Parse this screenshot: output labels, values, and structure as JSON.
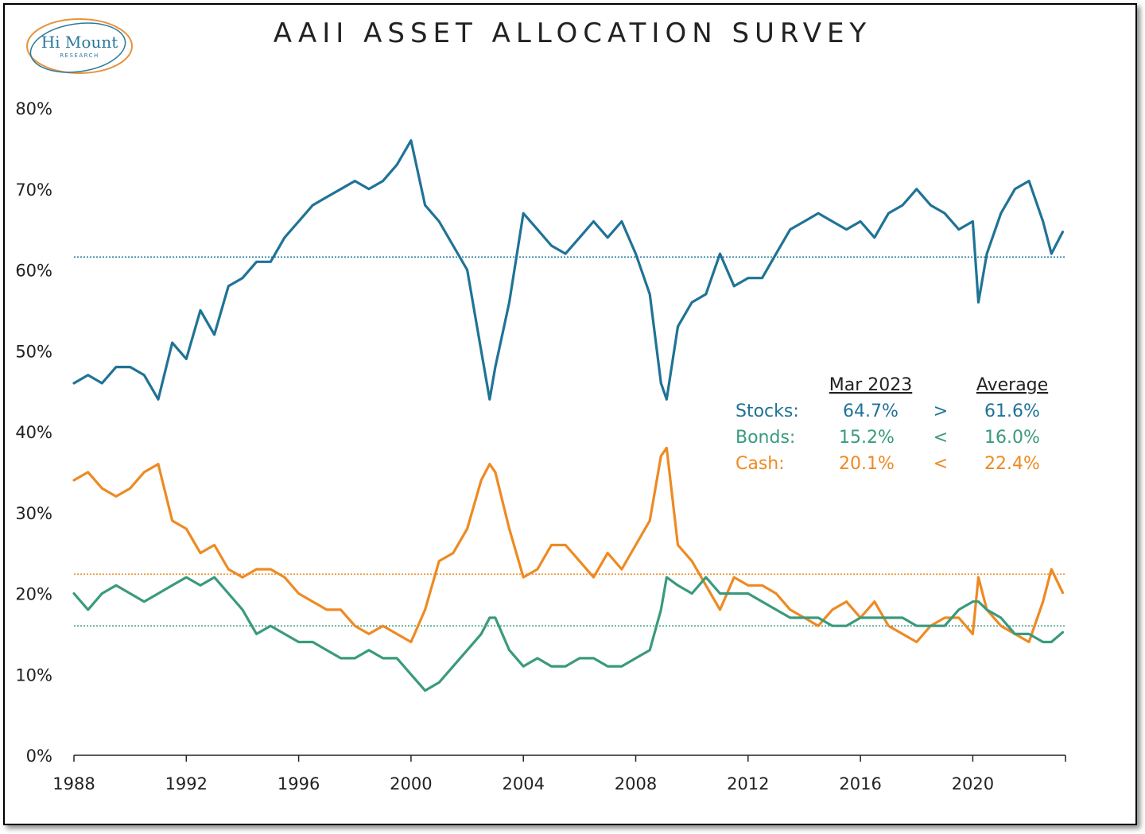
{
  "title": "AAII ASSET ALLOCATION SURVEY",
  "logo": {
    "line1": "Hi Mount",
    "line2": "RESEARCH"
  },
  "colors": {
    "stocks": "#1f7396",
    "bonds": "#3a9a7e",
    "cash": "#ee8a23",
    "axis": "#222222"
  },
  "summary": {
    "header_current": "Mar 2023",
    "header_average": "Average",
    "rows": [
      {
        "label": "Stocks:",
        "current": "64.7%",
        "cmp": ">",
        "average": "61.6%",
        "color": "#1f7396"
      },
      {
        "label": "Bonds:",
        "current": "15.2%",
        "cmp": "<",
        "average": "16.0%",
        "color": "#3a9a7e"
      },
      {
        "label": "Cash:",
        "current": "20.1%",
        "cmp": "<",
        "average": "22.4%",
        "color": "#ee8a23"
      }
    ]
  },
  "chart_data": {
    "type": "line",
    "title": "AAII ASSET ALLOCATION SURVEY",
    "xlabel": "",
    "ylabel": "",
    "xlim": [
      1988,
      2023.3
    ],
    "ylim": [
      0,
      80
    ],
    "x_ticks": [
      1988,
      1992,
      1996,
      2000,
      2004,
      2008,
      2012,
      2016,
      2020
    ],
    "x_tick_labels": [
      "1988",
      "1992",
      "1996",
      "2000",
      "2004",
      "2008",
      "2012",
      "2016",
      "2020"
    ],
    "y_ticks": [
      0,
      10,
      20,
      30,
      40,
      50,
      60,
      70,
      80
    ],
    "y_tick_labels": [
      "0%",
      "10%",
      "20%",
      "30%",
      "40%",
      "50%",
      "60%",
      "70%",
      "80%"
    ],
    "grid": false,
    "averages": {
      "stocks": 61.6,
      "bonds": 16.0,
      "cash": 22.4
    },
    "x": [
      1988.0,
      1988.5,
      1989.0,
      1989.5,
      1990.0,
      1990.5,
      1991.0,
      1991.5,
      1992.0,
      1992.5,
      1993.0,
      1993.5,
      1994.0,
      1994.5,
      1995.0,
      1995.5,
      1996.0,
      1996.5,
      1997.0,
      1997.5,
      1998.0,
      1998.5,
      1999.0,
      1999.5,
      2000.0,
      2000.5,
      2001.0,
      2001.5,
      2002.0,
      2002.5,
      2002.8,
      2003.0,
      2003.5,
      2004.0,
      2004.5,
      2005.0,
      2005.5,
      2006.0,
      2006.5,
      2007.0,
      2007.5,
      2008.0,
      2008.5,
      2008.9,
      2009.1,
      2009.5,
      2010.0,
      2010.5,
      2011.0,
      2011.5,
      2012.0,
      2012.5,
      2013.0,
      2013.5,
      2014.0,
      2014.5,
      2015.0,
      2015.5,
      2016.0,
      2016.5,
      2017.0,
      2017.5,
      2018.0,
      2018.5,
      2019.0,
      2019.5,
      2020.0,
      2020.2,
      2020.5,
      2021.0,
      2021.5,
      2022.0,
      2022.5,
      2022.8,
      2023.2
    ],
    "series": [
      {
        "name": "Stocks",
        "values": [
          46,
          47,
          46,
          48,
          48,
          47,
          44,
          51,
          49,
          55,
          52,
          58,
          59,
          61,
          61,
          64,
          66,
          68,
          69,
          70,
          71,
          70,
          71,
          73,
          76,
          68,
          66,
          63,
          60,
          50,
          44,
          48,
          56,
          67,
          65,
          63,
          62,
          64,
          66,
          64,
          66,
          62,
          57,
          46,
          44,
          53,
          56,
          57,
          62,
          58,
          59,
          59,
          62,
          65,
          66,
          67,
          66,
          65,
          66,
          64,
          67,
          68,
          70,
          68,
          67,
          65,
          66,
          56,
          62,
          67,
          70,
          71,
          66,
          62,
          64.7
        ]
      },
      {
        "name": "Bonds",
        "values": [
          20,
          18,
          20,
          21,
          20,
          19,
          20,
          21,
          22,
          21,
          22,
          20,
          18,
          15,
          16,
          15,
          14,
          14,
          13,
          12,
          12,
          13,
          12,
          12,
          10,
          8,
          9,
          11,
          13,
          15,
          17,
          17,
          13,
          11,
          12,
          11,
          11,
          12,
          12,
          11,
          11,
          12,
          13,
          18,
          22,
          21,
          20,
          22,
          20,
          20,
          20,
          19,
          18,
          17,
          17,
          17,
          16,
          16,
          17,
          17,
          17,
          17,
          16,
          16,
          16,
          18,
          19,
          19,
          18,
          17,
          15,
          15,
          14,
          14,
          15.2
        ]
      },
      {
        "name": "Cash",
        "values": [
          34,
          35,
          33,
          32,
          33,
          35,
          36,
          29,
          28,
          25,
          26,
          23,
          22,
          23,
          23,
          22,
          20,
          19,
          18,
          18,
          16,
          15,
          16,
          15,
          14,
          18,
          24,
          25,
          28,
          34,
          36,
          35,
          28,
          22,
          23,
          26,
          26,
          24,
          22,
          25,
          23,
          26,
          29,
          37,
          38,
          26,
          24,
          21,
          18,
          22,
          21,
          21,
          20,
          18,
          17,
          16,
          18,
          19,
          17,
          19,
          16,
          15,
          14,
          16,
          17,
          17,
          15,
          22,
          18,
          16,
          15,
          14,
          19,
          23,
          20.1
        ]
      }
    ]
  }
}
